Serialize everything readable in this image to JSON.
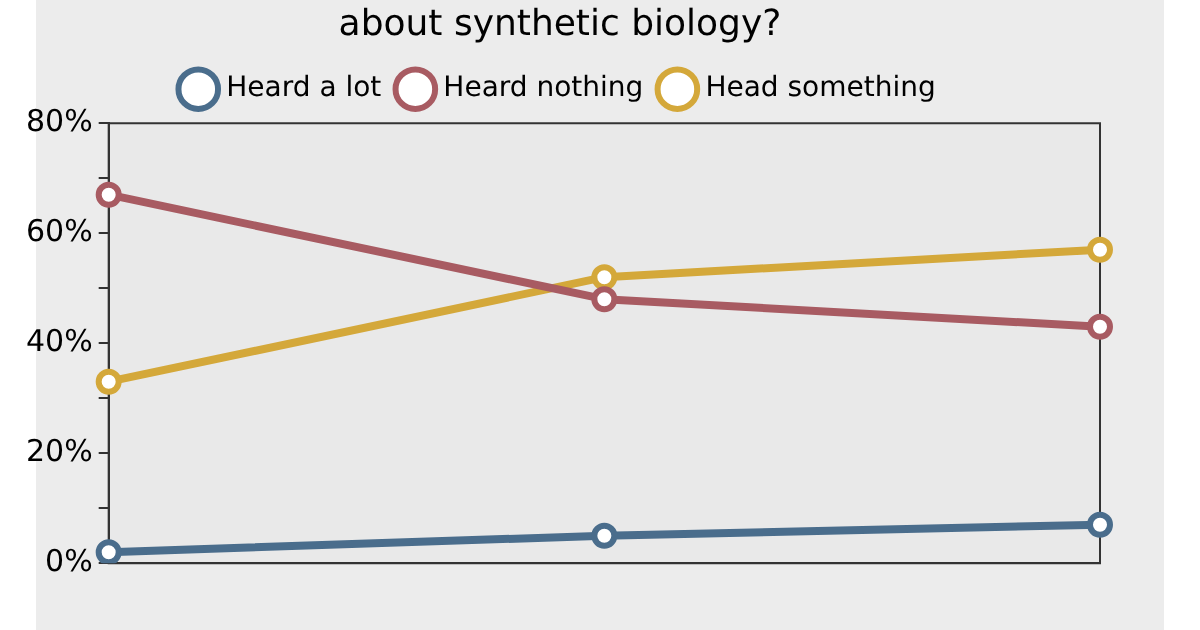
{
  "chart_data": {
    "type": "line",
    "title": "about synthetic biology?",
    "categories": [
      null,
      null,
      null
    ],
    "series": [
      {
        "name": "Heard a lot",
        "color": "#4a6d8c",
        "values": [
          2,
          5,
          7
        ]
      },
      {
        "name": "Heard nothing",
        "color": "#a85b62",
        "values": [
          67,
          48,
          43
        ]
      },
      {
        "name": "Head something",
        "color": "#d4a83a",
        "values": [
          33,
          52,
          57
        ]
      }
    ],
    "ylim": [
      0,
      80
    ],
    "yticks": [
      {
        "value": 0,
        "label": "0%"
      },
      {
        "value": 10,
        "label": null
      },
      {
        "value": 20,
        "label": "20%"
      },
      {
        "value": 30,
        "label": null
      },
      {
        "value": 40,
        "label": "40%"
      },
      {
        "value": 50,
        "label": null
      },
      {
        "value": 60,
        "label": "60%"
      },
      {
        "value": 70,
        "label": null
      },
      {
        "value": 80,
        "label": "80%"
      }
    ],
    "grid": false,
    "legend": "top",
    "marker": "circle",
    "line_style": "solid"
  }
}
